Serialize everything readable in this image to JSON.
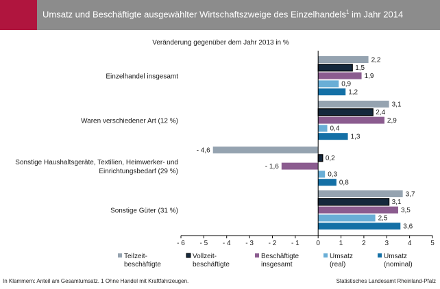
{
  "header": {
    "title": "Umsatz und Beschäftigte ausgewählter Wirtschaftszweige des Einzelhandels",
    "title_sup": "1",
    "title_suffix": " im Jahr 2014",
    "band_color": "#8c8c8c",
    "accent_color": "#b0153e"
  },
  "footer": {
    "note": "In Klammern: Anteil am Gesamtumsatz. 1 Ohne Handel mit Kraftfahrzeugen.",
    "source": "Statistisches Landesamt Rheinland-Pfalz"
  },
  "chart_data": {
    "type": "bar",
    "orientation": "horizontal",
    "subtitle": "Veränderung gegenüber  dem Jahr 2013 in %",
    "categories": [
      [
        "Einzelhandel insgesamt"
      ],
      [
        "Waren verschiedener Art (12 %)"
      ],
      [
        "Sonstige Haushaltsgeräte, Textilien, Heimwerker- und",
        "Einrichtungsbedarf (29 %)"
      ],
      [
        "Sonstige Güter (31 %)"
      ]
    ],
    "series": [
      {
        "name": [
          "Teilzeit-",
          "beschäftigte"
        ],
        "color": "#95a3b0",
        "outlined": false,
        "values": [
          2.2,
          3.1,
          -4.6,
          3.7
        ],
        "labels": [
          "2,2",
          "3,1",
          "- 4,6",
          "3,7"
        ]
      },
      {
        "name": [
          "Vollzeit-",
          "beschäftigte"
        ],
        "color": "#14283c",
        "outlined": true,
        "values": [
          1.5,
          2.4,
          0.2,
          3.1
        ],
        "labels": [
          "1,5",
          "2,4",
          "0,2",
          "3,1"
        ]
      },
      {
        "name": [
          "Beschäftigte",
          "insgesamt"
        ],
        "color": "#8b5c8f",
        "outlined": false,
        "values": [
          1.9,
          2.9,
          -1.6,
          3.5
        ],
        "labels": [
          "1,9",
          "2,9",
          "- 1,6",
          "3,5"
        ]
      },
      {
        "name": [
          "Umsatz",
          "(real)"
        ],
        "color": "#69aed6",
        "outlined": false,
        "values": [
          0.9,
          0.4,
          0.3,
          2.5
        ],
        "labels": [
          "0,9",
          "0,4",
          "0,3",
          "2,5"
        ]
      },
      {
        "name": [
          "Umsatz",
          "(nominal)"
        ],
        "color": "#1470a6",
        "outlined": false,
        "values": [
          1.2,
          1.3,
          0.8,
          3.6
        ],
        "labels": [
          "1,2",
          "1,3",
          "0,8",
          "3,6"
        ]
      }
    ],
    "xlim": [
      -6,
      5
    ],
    "xticks": [
      -6,
      -5,
      -4,
      -3,
      -2,
      -1,
      0,
      1,
      2,
      3,
      4,
      5
    ],
    "xtick_labels": [
      "- 6",
      "- 5",
      "- 4",
      "- 3",
      "- 2",
      "- 1",
      "0",
      "1",
      "2",
      "3",
      "4",
      "5"
    ],
    "grid": false,
    "legend_position": "bottom"
  }
}
